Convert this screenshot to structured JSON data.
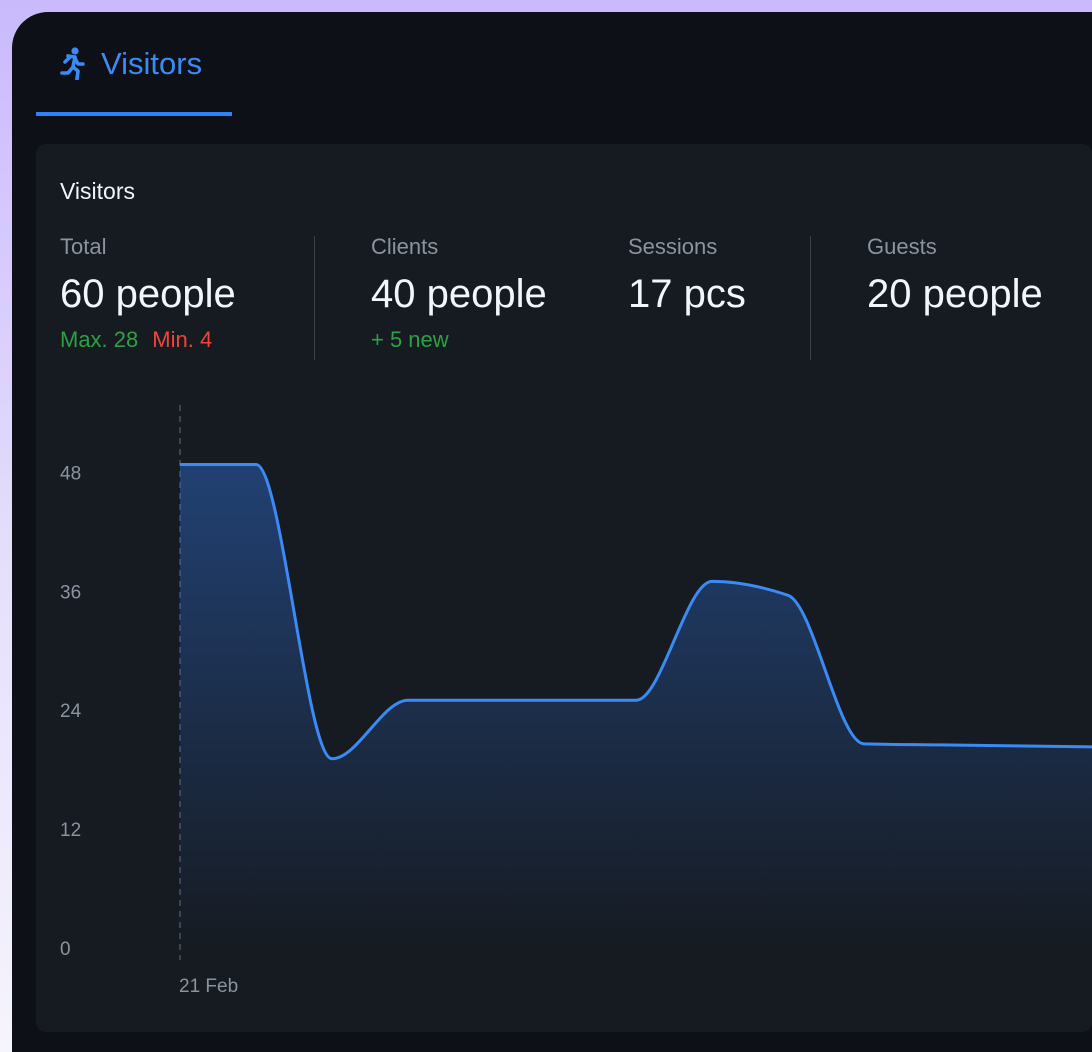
{
  "tab": "Visitors",
  "card_title": "Visitors",
  "stats": [
    {
      "label": "Total",
      "value": "60 people",
      "notes": [
        {
          "text": "Max. 28",
          "color": "#2ea043"
        },
        {
          "text": "Min. 4",
          "color": "#f0443a"
        }
      ]
    },
    {
      "label": "Clients",
      "value": "40 people",
      "notes": [
        {
          "text": "+ 5 new",
          "color": "#2ea043"
        }
      ]
    },
    {
      "label": "Sessions",
      "value": "17 pcs",
      "notes": []
    },
    {
      "label": "Guests",
      "value": "20 people",
      "notes": []
    }
  ],
  "chart_data": {
    "type": "area",
    "categories": [
      "21 Feb",
      null,
      null,
      null,
      null,
      null,
      null,
      null,
      null,
      null,
      null,
      null,
      null
    ],
    "series": [
      {
        "name": "Visitors",
        "color": "#3b8af5",
        "values": [
          49,
          49,
          19.3,
          25.2,
          25.2,
          25.2,
          25.2,
          37.2,
          35.8,
          20.8,
          20.7,
          20.6,
          20.5
        ]
      }
    ],
    "ylim": [
      0,
      55
    ],
    "yticks": [
      0,
      12,
      24,
      36,
      48
    ],
    "grid": false
  }
}
